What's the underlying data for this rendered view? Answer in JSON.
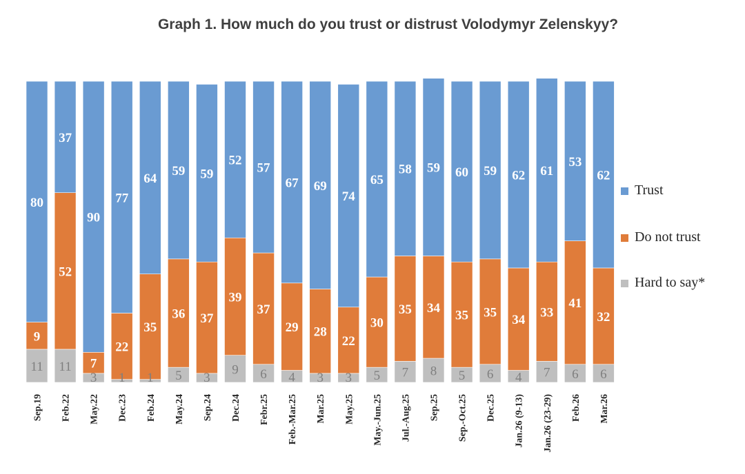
{
  "chart_data": {
    "type": "bar",
    "stacked": true,
    "title": "Graph 1. How much do you trust or distrust Volodymyr Zelenskyy?",
    "xlabel": "",
    "ylabel": "",
    "ylim": [
      0,
      100
    ],
    "categories": [
      "Sep.19",
      "Feb.22",
      "May.22",
      "Dec.23",
      "Feb.24",
      "May.24",
      "Sep.24",
      "Dec.24",
      "Febr.25",
      "Feb.-Mar.25",
      "Mar.25",
      "May.25",
      "May.-Jun.25",
      "Jul.-Aug.25",
      "Sep.25",
      "Sep.-Oct.25",
      "Dec.25",
      "Jan.26 (9-13)",
      "Jan.26 (23-29)",
      "Feb.26",
      "Mar.26"
    ],
    "series": [
      {
        "name": "Hard to say*",
        "color": "#bfbfbf",
        "values": [
          11,
          11,
          3,
          1,
          1,
          5,
          3,
          9,
          6,
          4,
          3,
          3,
          5,
          7,
          8,
          5,
          6,
          4,
          7,
          6,
          6
        ]
      },
      {
        "name": "Do not trust",
        "color": "#e07c3a",
        "values": [
          9,
          52,
          7,
          22,
          35,
          36,
          37,
          39,
          37,
          29,
          28,
          22,
          30,
          35,
          34,
          35,
          35,
          34,
          33,
          41,
          32
        ]
      },
      {
        "name": "Trust",
        "color": "#6a9bd2",
        "values": [
          80,
          37,
          90,
          77,
          64,
          59,
          59,
          52,
          57,
          67,
          69,
          74,
          65,
          58,
          59,
          60,
          59,
          62,
          61,
          53,
          62
        ]
      }
    ],
    "legend": [
      "Trust",
      "Do not trust",
      "Hard to say*"
    ],
    "legend_position": "right"
  }
}
